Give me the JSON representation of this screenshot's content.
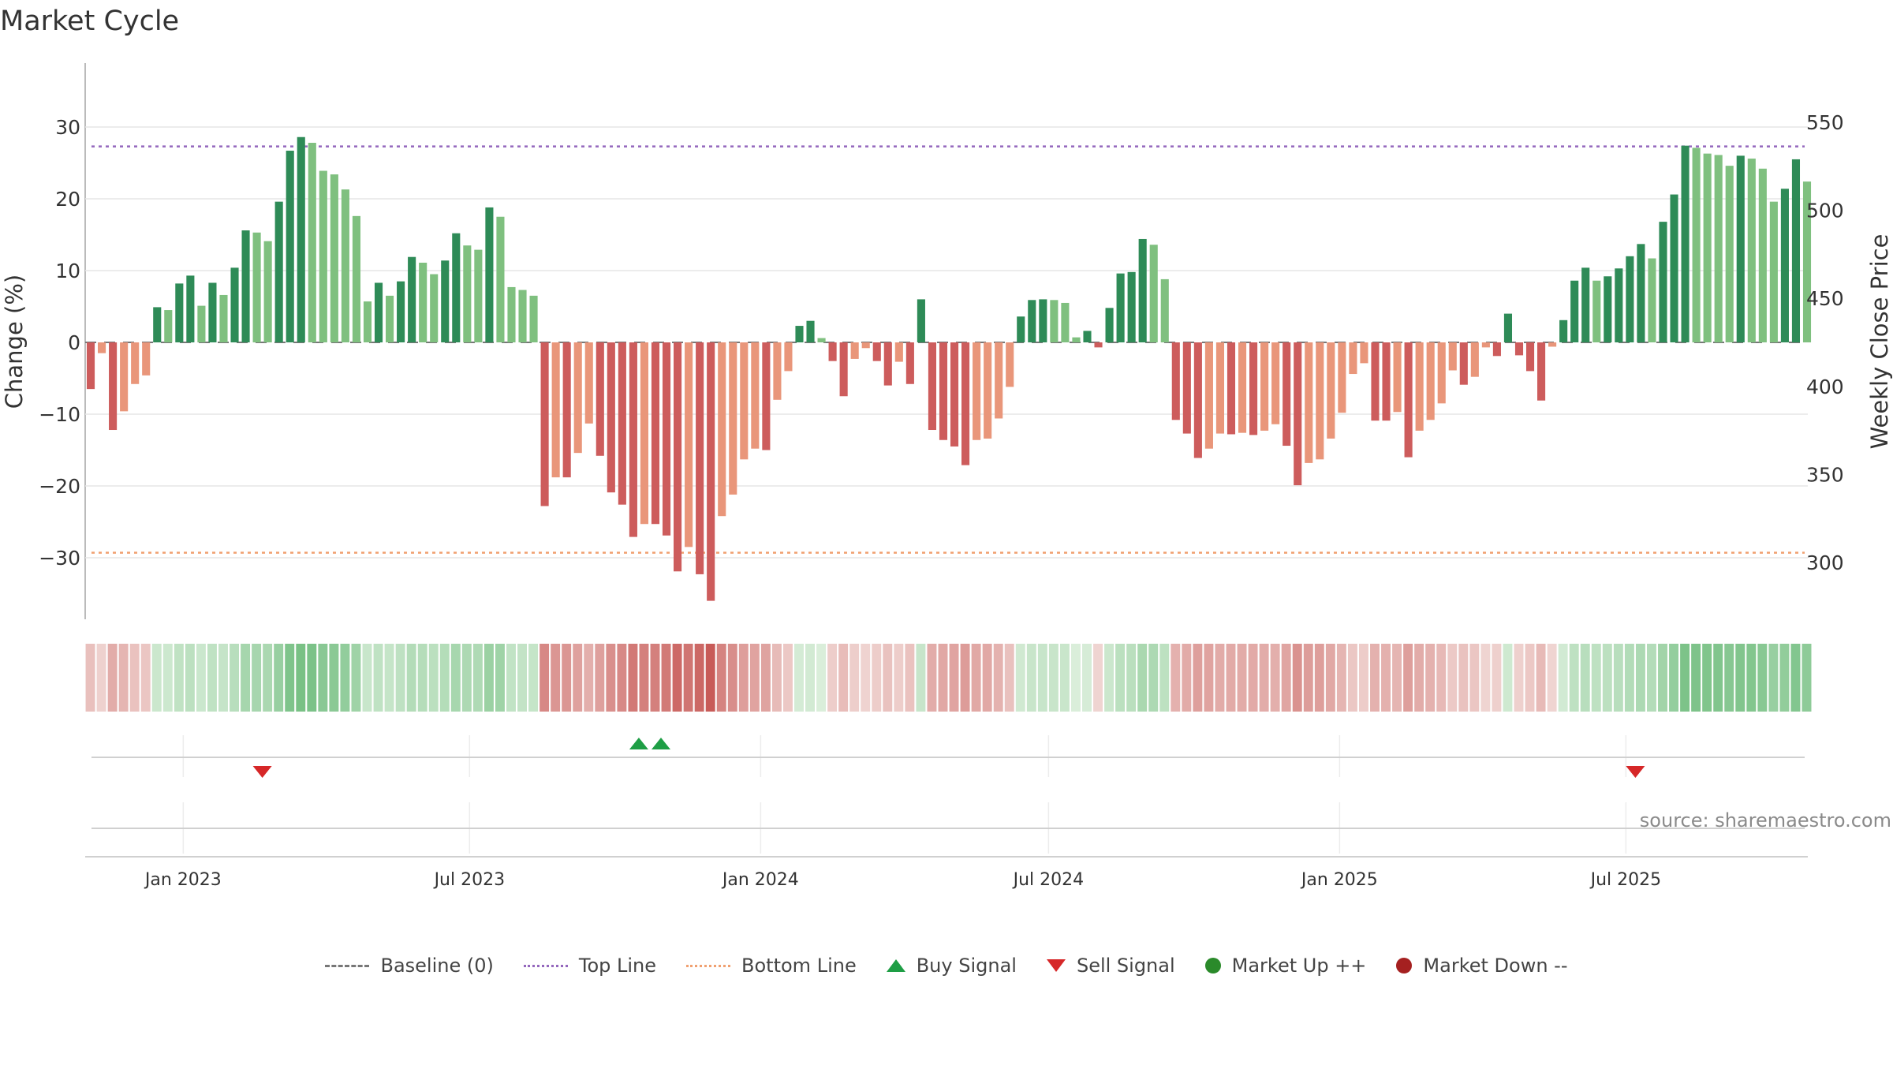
{
  "title": "Market Cycle",
  "source": "source: sharemaestro.com",
  "legend": {
    "baseline": "Baseline (0)",
    "top_line": "Top Line",
    "bottom_line": "Bottom Line",
    "buy_signal": "Buy Signal",
    "sell_signal": "Sell Signal",
    "market_up": "Market Up ++",
    "market_down": "Market Down --"
  },
  "colors": {
    "pos_strong": "#2e8b57",
    "pos_light": "#7fc07f",
    "neg_strong": "#cd5c5c",
    "neg_light": "#e9967a",
    "top_line": "#9467bd",
    "bottom_line": "#f0a070",
    "buy": "#1e9e45",
    "sell": "#d62728"
  },
  "chart_data": {
    "type": "bar",
    "title": "Market Cycle",
    "ylabel": "Change (%)",
    "y2label": "Weekly Close Price",
    "ylim": [
      -39,
      39
    ],
    "y2lim": [
      265,
      567
    ],
    "yticks": [
      -30,
      -20,
      -10,
      0,
      10,
      20,
      30
    ],
    "yticklabels": [
      "−30",
      "−20",
      "−10",
      "0",
      "10",
      "20",
      "30"
    ],
    "y2ticks": [
      300,
      350,
      400,
      450,
      500,
      550
    ],
    "y2ticklabels": [
      "300",
      "350",
      "400",
      "450",
      "500",
      "550"
    ],
    "xlim": [
      "2022-10-31",
      "2025-10-24"
    ],
    "xticks": [
      "2023-01-01",
      "2023-07-01",
      "2024-01-01",
      "2024-07-01",
      "2025-01-01",
      "2025-07-01"
    ],
    "xticklabels": [
      "Jan 2023",
      "Jul 2023",
      "Jan 2024",
      "Jul 2024",
      "Jan 2025",
      "Jul 2025"
    ],
    "start_week": "2022-10-31",
    "bar_interval_days": 7,
    "top_line": 27.3,
    "bottom_line": -29.3,
    "values": [
      -6.5,
      -1.5,
      -12.2,
      -9.6,
      -5.8,
      -4.6,
      4.9,
      4.5,
      8.2,
      9.3,
      5.1,
      8.3,
      6.6,
      10.4,
      15.6,
      15.3,
      14.1,
      19.6,
      26.7,
      28.6,
      27.8,
      23.9,
      23.4,
      21.3,
      17.6,
      5.7,
      8.3,
      6.5,
      8.5,
      11.9,
      11.1,
      9.5,
      11.4,
      15.2,
      13.5,
      12.9,
      18.8,
      17.5,
      7.7,
      7.3,
      6.5,
      -22.8,
      -18.8,
      -18.8,
      -15.4,
      -11.3,
      -15.8,
      -20.9,
      -22.6,
      -27.1,
      -25.3,
      -25.3,
      -26.9,
      -31.9,
      -28.5,
      -32.3,
      -36.0,
      -24.2,
      -21.2,
      -16.3,
      -14.8,
      -15.0,
      -8.0,
      -4.0,
      2.3,
      3.0,
      0.6,
      -2.6,
      -7.5,
      -2.3,
      -0.8,
      -2.6,
      -6.0,
      -2.7,
      -5.8,
      6.0,
      -12.2,
      -13.6,
      -14.5,
      -17.1,
      -13.6,
      -13.4,
      -10.6,
      -6.2,
      3.6,
      5.9,
      6.0,
      5.9,
      5.5,
      0.7,
      1.6,
      -0.7,
      4.8,
      9.6,
      9.8,
      14.4,
      13.6,
      8.8,
      -10.8,
      -12.7,
      -16.1,
      -14.8,
      -12.7,
      -12.8,
      -12.6,
      -12.9,
      -12.3,
      -11.4,
      -14.4,
      -19.9,
      -16.8,
      -16.3,
      -13.4,
      -9.8,
      -4.4,
      -2.9,
      -10.9,
      -10.9,
      -9.7,
      -16.0,
      -12.3,
      -10.8,
      -8.5,
      -3.9,
      -5.9,
      -4.8,
      -0.7,
      -1.9,
      4.0,
      -1.8,
      -4.0,
      -8.1,
      -0.6,
      3.1,
      8.6,
      10.4,
      8.6,
      9.2,
      10.3,
      12.0,
      13.7,
      11.7,
      16.8,
      20.6,
      27.4,
      27.1,
      26.3,
      26.1,
      24.6,
      26.0,
      25.6,
      24.2,
      19.6,
      21.4,
      25.5,
      22.4
    ],
    "signals": [
      {
        "type": "sell",
        "date": "2023-02-20"
      },
      {
        "type": "buy",
        "date": "2023-10-16"
      },
      {
        "type": "buy",
        "date": "2023-10-30"
      },
      {
        "type": "sell",
        "date": "2025-07-07"
      }
    ]
  }
}
